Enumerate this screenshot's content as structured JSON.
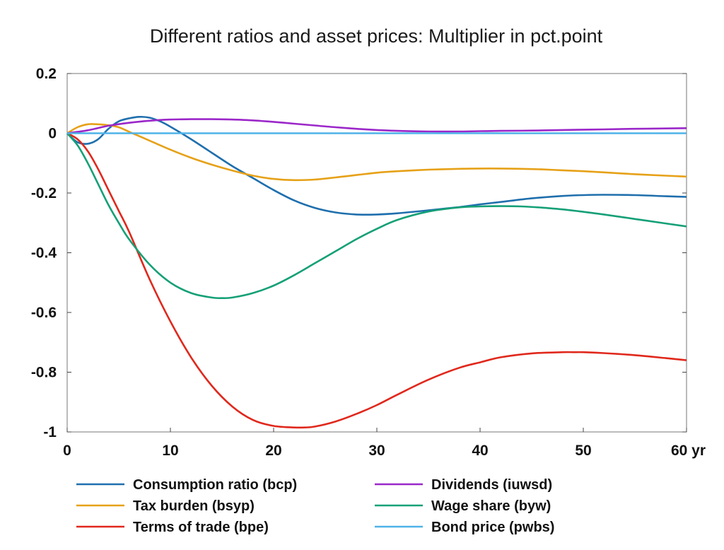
{
  "chart_data": {
    "type": "line",
    "title": "Different ratios and asset prices: Multiplier in pct.point",
    "xlabel": "",
    "ylabel": "",
    "xlim": [
      0,
      60
    ],
    "ylim": [
      -1,
      0.2
    ],
    "x_ticks": [
      0,
      10,
      20,
      30,
      40,
      50,
      60
    ],
    "x_tick_labels": [
      "0",
      "10",
      "20",
      "30",
      "40",
      "50",
      "60 yr"
    ],
    "y_ticks": [
      0.2,
      0,
      -0.2,
      -0.4,
      -0.6,
      -0.8,
      -1
    ],
    "y_tick_labels": [
      "0.2",
      "0",
      "-0.2",
      "-0.4",
      "-0.6",
      "-0.8",
      "-1"
    ],
    "grid": false,
    "legend_position": "bottom",
    "reference_line_y": 0,
    "colors": {
      "reference_line": "#0d3b4f",
      "axis": "#444444"
    },
    "series": [
      {
        "name": "Consumption ratio (bcp)",
        "color": "#1f6fad",
        "x": [
          0,
          1,
          2,
          3,
          4,
          5,
          6,
          7,
          8,
          9,
          10,
          12,
          14,
          16,
          18,
          20,
          22,
          24,
          26,
          28,
          30,
          32,
          35,
          38,
          40,
          42,
          45,
          48,
          50,
          52,
          55,
          58,
          60
        ],
        "y": [
          0,
          -0.03,
          -0.035,
          -0.02,
          0.015,
          0.04,
          0.05,
          0.055,
          0.052,
          0.04,
          0.022,
          -0.02,
          -0.065,
          -0.11,
          -0.15,
          -0.19,
          -0.225,
          -0.25,
          -0.265,
          -0.272,
          -0.272,
          -0.268,
          -0.258,
          -0.247,
          -0.238,
          -0.23,
          -0.218,
          -0.21,
          -0.207,
          -0.206,
          -0.207,
          -0.211,
          -0.213
        ]
      },
      {
        "name": "Tax burden (bsyp)",
        "color": "#e6a117",
        "x": [
          0,
          1,
          2,
          3,
          4,
          5,
          6,
          7,
          8,
          10,
          12,
          14,
          16,
          18,
          20,
          22,
          24,
          26,
          28,
          30,
          32,
          35,
          38,
          40,
          42,
          44,
          46,
          48,
          50,
          52,
          55,
          58,
          60
        ],
        "y": [
          0,
          0.02,
          0.03,
          0.03,
          0.027,
          0.02,
          0.005,
          -0.01,
          -0.025,
          -0.055,
          -0.082,
          -0.105,
          -0.125,
          -0.142,
          -0.153,
          -0.157,
          -0.155,
          -0.148,
          -0.14,
          -0.132,
          -0.127,
          -0.122,
          -0.119,
          -0.118,
          -0.118,
          -0.119,
          -0.121,
          -0.124,
          -0.127,
          -0.131,
          -0.137,
          -0.142,
          -0.145
        ]
      },
      {
        "name": "Terms of trade (bpe)",
        "color": "#e0281c",
        "x": [
          0,
          1,
          2,
          3,
          4,
          5,
          6,
          8,
          10,
          12,
          14,
          16,
          18,
          20,
          22,
          23,
          24,
          26,
          28,
          30,
          32,
          35,
          38,
          40,
          42,
          45,
          48,
          49,
          50,
          52,
          55,
          58,
          60
        ],
        "y": [
          0,
          -0.02,
          -0.06,
          -0.12,
          -0.19,
          -0.26,
          -0.33,
          -0.49,
          -0.63,
          -0.75,
          -0.845,
          -0.915,
          -0.96,
          -0.98,
          -0.985,
          -0.985,
          -0.982,
          -0.965,
          -0.94,
          -0.91,
          -0.875,
          -0.825,
          -0.785,
          -0.767,
          -0.75,
          -0.737,
          -0.733,
          -0.733,
          -0.733,
          -0.736,
          -0.743,
          -0.753,
          -0.76
        ]
      },
      {
        "name": "Dividends (iuwsd)",
        "color": "#9b27c9",
        "x": [
          0,
          2,
          4,
          6,
          8,
          10,
          12,
          14,
          16,
          18,
          20,
          22,
          24,
          26,
          28,
          30,
          32,
          35,
          38,
          40,
          42,
          45,
          48,
          50,
          52,
          55,
          58,
          60
        ],
        "y": [
          0,
          0.01,
          0.025,
          0.035,
          0.042,
          0.046,
          0.047,
          0.047,
          0.046,
          0.043,
          0.038,
          0.032,
          0.026,
          0.02,
          0.015,
          0.011,
          0.008,
          0.006,
          0.006,
          0.007,
          0.008,
          0.009,
          0.011,
          0.012,
          0.013,
          0.015,
          0.016,
          0.017
        ]
      },
      {
        "name": "Wage share (byw)",
        "color": "#15a077",
        "x": [
          0,
          1,
          2,
          3,
          4,
          5,
          6,
          8,
          10,
          12,
          14,
          15,
          16,
          18,
          20,
          22,
          24,
          26,
          28,
          30,
          32,
          35,
          38,
          40,
          42,
          44,
          46,
          48,
          50,
          52,
          55,
          58,
          60
        ],
        "y": [
          0,
          -0.04,
          -0.1,
          -0.17,
          -0.24,
          -0.3,
          -0.355,
          -0.44,
          -0.5,
          -0.535,
          -0.55,
          -0.552,
          -0.55,
          -0.535,
          -0.51,
          -0.475,
          -0.435,
          -0.395,
          -0.355,
          -0.32,
          -0.29,
          -0.262,
          -0.248,
          -0.245,
          -0.244,
          -0.245,
          -0.249,
          -0.255,
          -0.263,
          -0.272,
          -0.287,
          -0.302,
          -0.312
        ]
      },
      {
        "name": "Bond price (pwbs)",
        "color": "#4fb3e8",
        "x": [
          0,
          60
        ],
        "y": [
          0,
          0
        ]
      }
    ]
  }
}
